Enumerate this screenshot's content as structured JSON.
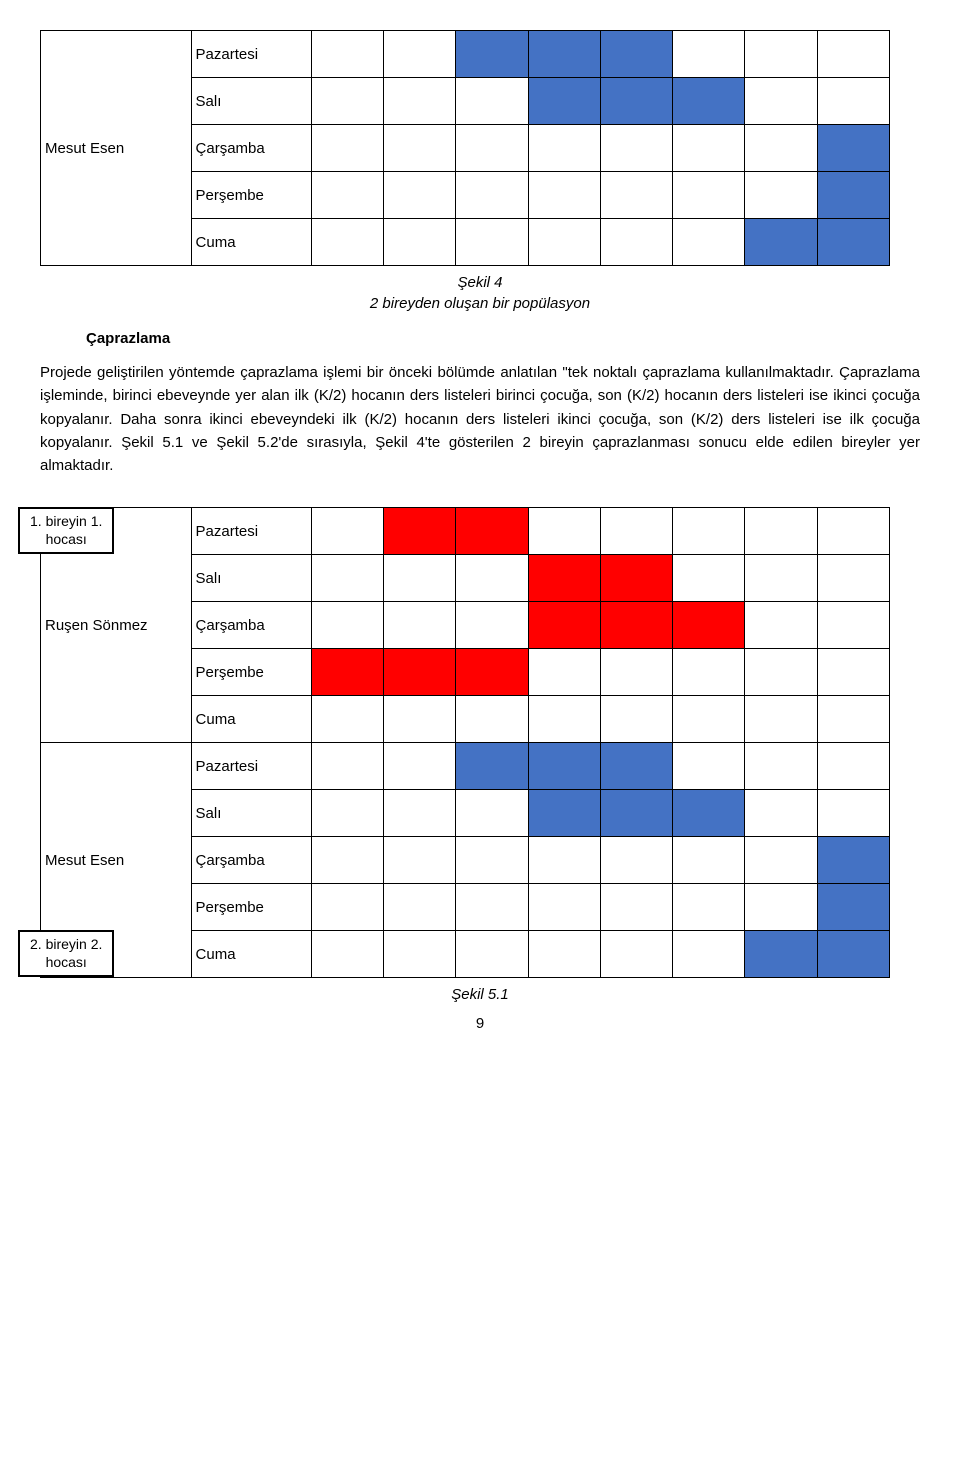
{
  "colors": {
    "blue": "#4472c4",
    "red": "#ff0000",
    "border": "#000000",
    "text": "#000000",
    "bg": "#ffffff"
  },
  "fonts": {
    "family": "Arial",
    "body_size_pt": 11,
    "line_height": 1.55,
    "caption_style": "italic"
  },
  "days": [
    "Pazartesi",
    "Salı",
    "Çarşamba",
    "Perşembe",
    "Cuma"
  ],
  "slots_per_row": 8,
  "table_top": {
    "caption": "Şekil 4",
    "subtitle": "2 bireyden oluşan bir popülasyon",
    "person_label": "Mesut Esen",
    "person_label_row": 2,
    "rows": [
      {
        "day": "Pazartesi",
        "fill": [
          false,
          false,
          true,
          true,
          true,
          false,
          false,
          false
        ],
        "color": "blue"
      },
      {
        "day": "Salı",
        "fill": [
          false,
          false,
          false,
          true,
          true,
          true,
          false,
          false
        ],
        "color": "blue"
      },
      {
        "day": "Çarşamba",
        "fill": [
          false,
          false,
          false,
          false,
          false,
          false,
          false,
          true
        ],
        "color": "blue"
      },
      {
        "day": "Perşembe",
        "fill": [
          false,
          false,
          false,
          false,
          false,
          false,
          false,
          true
        ],
        "color": "blue"
      },
      {
        "day": "Cuma",
        "fill": [
          false,
          false,
          false,
          false,
          false,
          false,
          true,
          true
        ],
        "color": "blue"
      }
    ]
  },
  "section": {
    "heading": "Çaprazlama",
    "paragraph": "Projede geliştirilen yöntemde çaprazlama işlemi bir önceki bölümde anlatılan \"tek noktalı çaprazlama kullanılmaktadır. Çaprazlama işleminde, birinci ebeveynde yer alan ilk (K/2) hocanın ders listeleri birinci çocuğa, son (K/2) hocanın ders listeleri ise ikinci çocuğa kopyalanır. Daha sonra ikinci ebeveyndeki ilk (K/2) hocanın ders listeleri ikinci çocuğa, son (K/2) ders listeleri ise ilk çocuğa kopyalanır. Şekil 5.1 ve Şekil 5.2'de sırasıyla, Şekil 4'te gösterilen 2 bireyin çaprazlanması sonucu elde edilen bireyler yer almaktadır."
  },
  "callouts": {
    "top": {
      "line1": "1. bireyin 1.",
      "line2": "hocası"
    },
    "bottom": {
      "line1": "2. bireyin 2.",
      "line2": "hocası"
    }
  },
  "table_bottom": {
    "caption": "Şekil 5.1",
    "blocks": [
      {
        "person_label": "Ruşen Sönmez",
        "person_label_row": 2,
        "rows": [
          {
            "day": "Pazartesi",
            "fill": [
              false,
              true,
              true,
              false,
              false,
              false,
              false,
              false
            ],
            "color": "red"
          },
          {
            "day": "Salı",
            "fill": [
              false,
              false,
              false,
              true,
              true,
              false,
              false,
              false
            ],
            "color": "red"
          },
          {
            "day": "Çarşamba",
            "fill": [
              false,
              false,
              false,
              true,
              true,
              true,
              false,
              false
            ],
            "color": "red"
          },
          {
            "day": "Perşembe",
            "fill": [
              true,
              true,
              true,
              false,
              false,
              false,
              false,
              false
            ],
            "color": "red"
          },
          {
            "day": "Cuma",
            "fill": [
              false,
              false,
              false,
              false,
              false,
              false,
              false,
              false
            ],
            "color": "red"
          }
        ]
      },
      {
        "person_label": "Mesut Esen",
        "person_label_row": 2,
        "rows": [
          {
            "day": "Pazartesi",
            "fill": [
              false,
              false,
              true,
              true,
              true,
              false,
              false,
              false
            ],
            "color": "blue"
          },
          {
            "day": "Salı",
            "fill": [
              false,
              false,
              false,
              true,
              true,
              true,
              false,
              false
            ],
            "color": "blue"
          },
          {
            "day": "Çarşamba",
            "fill": [
              false,
              false,
              false,
              false,
              false,
              false,
              false,
              true
            ],
            "color": "blue"
          },
          {
            "day": "Perşembe",
            "fill": [
              false,
              false,
              false,
              false,
              false,
              false,
              false,
              true
            ],
            "color": "blue"
          },
          {
            "day": "Cuma",
            "fill": [
              false,
              false,
              false,
              false,
              false,
              false,
              true,
              true
            ],
            "color": "blue"
          }
        ]
      }
    ]
  },
  "page_number": "9"
}
